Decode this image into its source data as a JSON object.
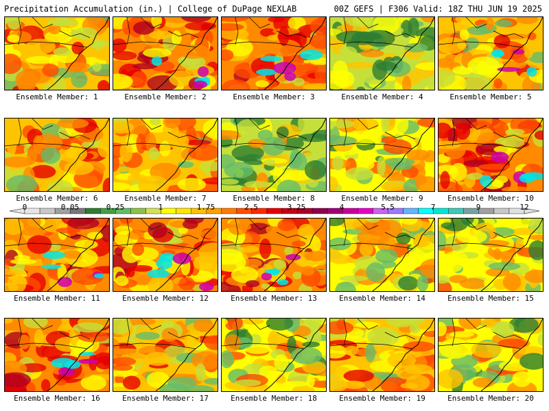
{
  "header": {
    "title": "Precipitation Accumulation (in.) | College of DuPage NEXLAB",
    "valid": "00Z GEFS | F306 Valid: 18Z THU JUN 19 2025"
  },
  "members": [
    {
      "label": "Ensemble Member: 1",
      "intensity": 0.55
    },
    {
      "label": "Ensemble Member: 2",
      "intensity": 0.72
    },
    {
      "label": "Ensemble Member: 3",
      "intensity": 0.68
    },
    {
      "label": "Ensemble Member: 4",
      "intensity": 0.32
    },
    {
      "label": "Ensemble Member: 5",
      "intensity": 0.62
    },
    {
      "label": "Ensemble Member: 6",
      "intensity": 0.6
    },
    {
      "label": "Ensemble Member: 7",
      "intensity": 0.55
    },
    {
      "label": "Ensemble Member: 8",
      "intensity": 0.28
    },
    {
      "label": "Ensemble Member: 9",
      "intensity": 0.38
    },
    {
      "label": "Ensemble Member: 10",
      "intensity": 0.66
    },
    {
      "label": "Ensemble Member: 11",
      "intensity": 0.68
    },
    {
      "label": "Ensemble Member: 12",
      "intensity": 0.66
    },
    {
      "label": "Ensemble Member: 13",
      "intensity": 0.64
    },
    {
      "label": "Ensemble Member: 14",
      "intensity": 0.45
    },
    {
      "label": "Ensemble Member: 15",
      "intensity": 0.42
    },
    {
      "label": "Ensemble Member: 16",
      "intensity": 0.72
    },
    {
      "label": "Ensemble Member: 17",
      "intensity": 0.52
    },
    {
      "label": "Ensemble Member: 18",
      "intensity": 0.38
    },
    {
      "label": "Ensemble Member: 19",
      "intensity": 0.5
    },
    {
      "label": "Ensemble Member: 20",
      "intensity": 0.48
    }
  ],
  "colorbar": {
    "ticks": [
      "0",
      "0.05",
      "0.25",
      "1",
      "1.75",
      "2.5",
      "3.25",
      "4",
      "5.5",
      "7",
      "9",
      "12"
    ],
    "colors": [
      "#e6e6e6",
      "#c8c8c8",
      "#a0a0a0",
      "#787878",
      "#2e7d32",
      "#43a047",
      "#66bb6a",
      "#8bc34a",
      "#d4e157",
      "#ffff00",
      "#ffe600",
      "#ffc400",
      "#ffa000",
      "#ff7a00",
      "#ff5000",
      "#ff2800",
      "#e60000",
      "#c80014",
      "#aa0028",
      "#8c0050",
      "#a00078",
      "#c8009b",
      "#e600c8",
      "#c864f0",
      "#a078ff",
      "#64b4ff",
      "#00ffff",
      "#00e6d2",
      "#40c8b4",
      "#78a0a0",
      "#a0a0a0",
      "#c8c8c8",
      "#e0e0e0"
    ]
  }
}
